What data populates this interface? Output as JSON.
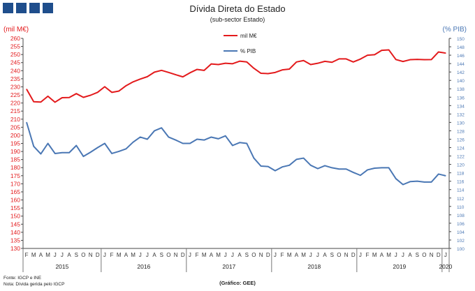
{
  "chart_data": {
    "type": "line",
    "title": "Dívida Direta do Estado",
    "subtitle": "(sub-sector Estado)",
    "ylabel_left": "(mil M€)",
    "ylabel_right": "(% PIB)",
    "ylim_left": [
      130,
      260
    ],
    "ylim_right": [
      100,
      150
    ],
    "y_ticks_left": [
      "130",
      "135",
      "140",
      "145",
      "150",
      "155",
      "160",
      "165",
      "170",
      "175",
      "180",
      "185",
      "190",
      "195",
      "200",
      "205",
      "210",
      "215",
      "220",
      "225",
      "230",
      "235",
      "240",
      "245",
      "250",
      "255",
      "260"
    ],
    "y_ticks_right": [
      "100",
      "102",
      "104",
      "106",
      "108",
      "110",
      "112",
      "114",
      "116",
      "118",
      "120",
      "122",
      "124",
      "126",
      "128",
      "130",
      "132",
      "134",
      "136",
      "138",
      "140",
      "142",
      "144",
      "146",
      "148",
      "150"
    ],
    "month_labels": [
      "F",
      "M",
      "A",
      "M",
      "J",
      "J",
      "A",
      "S",
      "O",
      "N",
      "D",
      "J",
      "F",
      "M",
      "A",
      "M",
      "J",
      "J",
      "A",
      "S",
      "O",
      "N",
      "D",
      "J",
      "F",
      "M",
      "A",
      "M",
      "J",
      "J",
      "A",
      "S",
      "O",
      "N",
      "D",
      "J",
      "F",
      "M",
      "A",
      "M",
      "J",
      "J",
      "A",
      "S",
      "O",
      "N",
      "D",
      "J",
      "F",
      "M",
      "A",
      "M",
      "J",
      "J",
      "A",
      "S",
      "O",
      "N",
      "D",
      "J"
    ],
    "years": [
      {
        "label": "2015",
        "start": 0,
        "end": 11
      },
      {
        "label": "2016",
        "start": 11,
        "end": 23
      },
      {
        "label": "2017",
        "start": 23,
        "end": 35
      },
      {
        "label": "2018",
        "start": 35,
        "end": 47
      },
      {
        "label": "2019",
        "start": 47,
        "end": 59
      },
      {
        "label": "2020",
        "start": 59,
        "end": 60
      }
    ],
    "series": [
      {
        "name": "mil M€",
        "axis": "left",
        "color": "#e31a1c",
        "values": [
          228.5,
          220.8,
          220.6,
          224.2,
          220.5,
          223.3,
          223.4,
          225.8,
          223.5,
          224.8,
          226.6,
          230.1,
          226.6,
          227.4,
          230.7,
          233.1,
          234.8,
          236.3,
          239.1,
          240.2,
          238.9,
          237.5,
          236.2,
          238.7,
          240.8,
          240.2,
          244.2,
          243.8,
          244.6,
          244.3,
          245.9,
          245.4,
          241.5,
          238.4,
          238.2,
          238.9,
          240.5,
          241.0,
          245.4,
          246.3,
          243.8,
          244.6,
          245.8,
          245.2,
          247.3,
          247.3,
          245.4,
          247.2,
          249.6,
          249.9,
          252.6,
          252.9,
          246.9,
          245.7,
          246.8,
          247.0,
          246.8,
          246.9,
          251.6,
          250.9
        ]
      },
      {
        "name": "% PIB",
        "axis": "right",
        "color": "#4a77b4",
        "values": [
          130.0,
          124.3,
          122.5,
          125.0,
          122.6,
          122.8,
          122.8,
          124.5,
          121.9,
          122.9,
          124.0,
          125.0,
          122.6,
          123.1,
          123.7,
          125.3,
          126.5,
          126.0,
          128.0,
          128.7,
          126.5,
          125.8,
          125.0,
          125.0,
          126.0,
          125.8,
          126.5,
          126.1,
          126.8,
          124.5,
          125.2,
          125.0,
          121.5,
          119.6,
          119.5,
          118.5,
          119.4,
          119.8,
          121.2,
          121.5,
          119.8,
          119.0,
          119.7,
          119.2,
          118.9,
          118.9,
          118.1,
          117.4,
          118.7,
          119.1,
          119.2,
          119.2,
          116.6,
          115.2,
          115.9,
          116.0,
          115.8,
          115.8,
          117.7,
          117.3
        ]
      }
    ],
    "legend": [
      "mil M€",
      "% PIB"
    ]
  },
  "footer": {
    "source": "Fonte: IGCP e INE",
    "note": "Nota: Dívida gerida pelo IGCP",
    "credit": "(Gráfico: GEE)"
  }
}
